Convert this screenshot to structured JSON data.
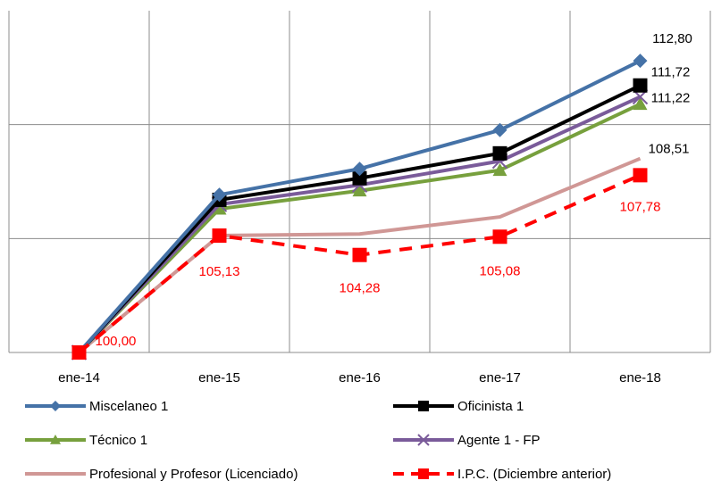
{
  "chart_data": {
    "type": "line",
    "categories": [
      "ene-14",
      "ene-15",
      "ene-16",
      "ene-17",
      "ene-18"
    ],
    "ylim": [
      100,
      115
    ],
    "grid": {
      "vertical": true,
      "horizontal": true,
      "horizontal_values": [
        105,
        110
      ]
    },
    "legend_position": "bottom",
    "series": [
      {
        "name": "Miscelaneo 1",
        "color": "#4572A7",
        "marker": "diamond",
        "dash": false,
        "values": [
          100.0,
          106.92,
          108.06,
          109.76,
          112.8
        ]
      },
      {
        "name": "Oficinista 1",
        "color": "#000000",
        "marker": "square",
        "dash": false,
        "values": [
          100.0,
          106.7,
          107.65,
          108.74,
          111.72
        ]
      },
      {
        "name": "Técnico 1",
        "color": "#77A03D",
        "marker": "triangle",
        "dash": false,
        "values": [
          100.0,
          106.3,
          107.1,
          108.0,
          110.9
        ]
      },
      {
        "name": "Agente 1 - FP",
        "color": "#7A5B9A",
        "marker": "x",
        "dash": false,
        "values": [
          100.0,
          106.5,
          107.35,
          108.4,
          111.22
        ]
      },
      {
        "name": "Profesional y Profesor (Licenciado)",
        "color": "#D09795",
        "marker": "none",
        "dash": false,
        "values": [
          100.0,
          105.13,
          105.2,
          105.95,
          108.51
        ]
      },
      {
        "name": "I.P.C. (Diciembre anterior)",
        "color": "#FF0000",
        "marker": "square",
        "dash": true,
        "values": [
          100.0,
          105.13,
          104.28,
          105.08,
          107.78
        ]
      }
    ],
    "data_labels": [
      {
        "text": "100,00",
        "color": "#FF0000",
        "series": 5,
        "index": 0
      },
      {
        "text": "105,13",
        "color": "#FF0000",
        "series": 5,
        "index": 1
      },
      {
        "text": "104,28",
        "color": "#FF0000",
        "series": 5,
        "index": 2
      },
      {
        "text": "105,08",
        "color": "#FF0000",
        "series": 5,
        "index": 3
      },
      {
        "text": "107,78",
        "color": "#FF0000",
        "series": 5,
        "index": 4
      },
      {
        "text": "112,80",
        "color": "#000000",
        "series": 0,
        "index": 4
      },
      {
        "text": "111,72",
        "color": "#000000",
        "series": 1,
        "index": 4
      },
      {
        "text": "111,22",
        "color": "#000000",
        "series": 3,
        "index": 4
      },
      {
        "text": "108,51",
        "color": "#000000",
        "series": 4,
        "index": 4
      }
    ]
  }
}
